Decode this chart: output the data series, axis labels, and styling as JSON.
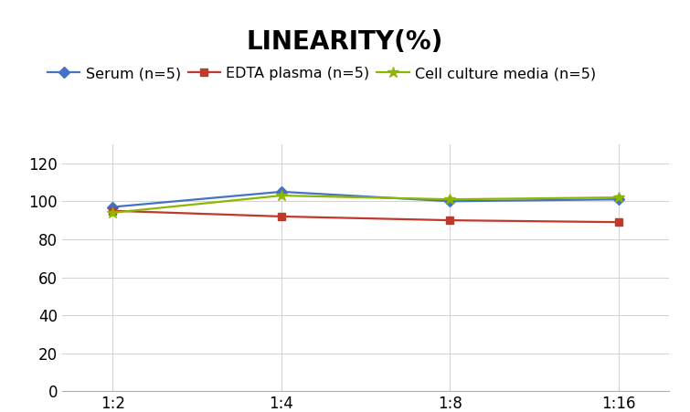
{
  "title": "LINEARITY(%)",
  "x_labels": [
    "1:2",
    "1:4",
    "1:8",
    "1:16"
  ],
  "x_positions": [
    0,
    1,
    2,
    3
  ],
  "series": [
    {
      "label": "Serum (n=5)",
      "values": [
        97,
        105,
        100,
        101
      ],
      "color": "#4472C4",
      "marker": "D",
      "markersize": 6
    },
    {
      "label": "EDTA plasma (n=5)",
      "values": [
        95,
        92,
        90,
        89
      ],
      "color": "#C0392B",
      "marker": "s",
      "markersize": 6
    },
    {
      "label": "Cell culture media (n=5)",
      "values": [
        94,
        103,
        101,
        102
      ],
      "color": "#8DB600",
      "marker": "*",
      "markersize": 9
    }
  ],
  "ylim": [
    0,
    130
  ],
  "yticks": [
    0,
    20,
    40,
    60,
    80,
    100,
    120
  ],
  "title_fontsize": 20,
  "legend_fontsize": 11.5,
  "tick_fontsize": 12,
  "background_color": "#ffffff",
  "grid_color": "#d4d4d4"
}
